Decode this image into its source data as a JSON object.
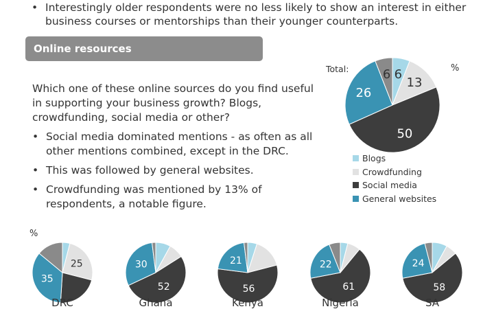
{
  "top_bullet": {
    "bullet": "•",
    "text": "Interestingly older respondents were no less likely to show an interest in either business courses or mentorships than their younger counterparts."
  },
  "section": {
    "title": "Online resources"
  },
  "question": "Which one of these online sources do you find useful in supporting your business growth? Blogs, crowdfunding,  social media or other?",
  "bullets": [
    "Social media dominated mentions - as often as all other mentions combined, except in the DRC.",
    "This was followed by general websites.",
    "Crowdfunding was mentioned by 13% of respondents, a notable figure."
  ],
  "labels": {
    "total": "Total:",
    "percent": "%",
    "percent_small": "%"
  },
  "colors": {
    "Blogs": "#a6d8e8",
    "Crowdfunding": "#e2e2e2",
    "Social media": "#3d3d3d",
    "General websites": "#3a93b3",
    "Other": "#8a8a8a"
  },
  "chart_data": [
    {
      "type": "pie",
      "title": "Total:",
      "unit": "%",
      "labels": [
        "Blogs",
        "Crowdfunding",
        "Social media",
        "General websites",
        "Other"
      ],
      "values": [
        6,
        13,
        50,
        26,
        6
      ],
      "data_labels": [
        "6",
        "13",
        "50",
        "26",
        "6"
      ],
      "legend": [
        "Blogs",
        "Crowdfunding",
        "Social media",
        "General websites"
      ],
      "legend_position": "bottom"
    },
    {
      "type": "pie",
      "title": "DRC",
      "labels": [
        "Blogs",
        "Crowdfunding",
        "Social media",
        "General websites",
        "Other"
      ],
      "values": [
        4,
        25,
        22,
        35,
        14
      ],
      "data_labels": [
        "",
        "25",
        "",
        "35",
        ""
      ]
    },
    {
      "type": "pie",
      "title": "Ghana",
      "labels": [
        "Blogs",
        "Crowdfunding",
        "Social media",
        "General websites",
        "Other"
      ],
      "values": [
        8,
        8,
        52,
        30,
        2
      ],
      "data_labels": [
        "",
        "",
        "52",
        "30",
        ""
      ]
    },
    {
      "type": "pie",
      "title": "Kenya",
      "labels": [
        "Blogs",
        "Crowdfunding",
        "Social media",
        "General websites",
        "Other"
      ],
      "values": [
        5,
        16,
        56,
        21,
        2
      ],
      "data_labels": [
        "",
        "",
        "56",
        "21",
        ""
      ]
    },
    {
      "type": "pie",
      "title": "Nigeria",
      "labels": [
        "Blogs",
        "Crowdfunding",
        "Social media",
        "General websites",
        "Other"
      ],
      "values": [
        4,
        7,
        61,
        22,
        6
      ],
      "data_labels": [
        "",
        "",
        "61",
        "22",
        ""
      ]
    },
    {
      "type": "pie",
      "title": "SA",
      "labels": [
        "Blogs",
        "Crowdfunding",
        "Social media",
        "General websites",
        "Other"
      ],
      "values": [
        8,
        6,
        58,
        24,
        4
      ],
      "data_labels": [
        "",
        "",
        "58",
        "24",
        ""
      ]
    }
  ]
}
